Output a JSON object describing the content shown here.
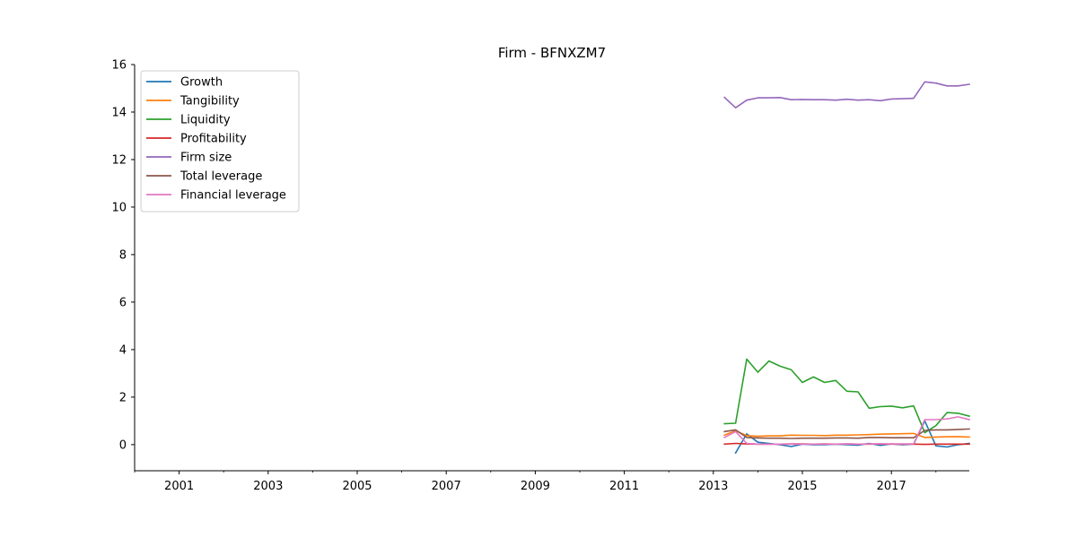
{
  "chart_data": {
    "type": "line",
    "title": "Firm - BFNXZM7",
    "xlabel": "",
    "ylabel": "",
    "xlim": [
      2000.0,
      2018.75
    ],
    "ylim": [
      -1.1,
      16
    ],
    "x_ticks": [
      2001,
      2003,
      2005,
      2007,
      2009,
      2011,
      2013,
      2015,
      2017
    ],
    "x_minor_ticks": [
      2000,
      2002,
      2004,
      2006,
      2008,
      2010,
      2012,
      2014,
      2016,
      2018
    ],
    "y_ticks": [
      0,
      2,
      4,
      6,
      8,
      10,
      12,
      14,
      16
    ],
    "legend_position": "top-left",
    "grid": false,
    "x": [
      2013.25,
      2013.5,
      2013.75,
      2014.0,
      2014.25,
      2014.5,
      2014.75,
      2015.0,
      2015.25,
      2015.5,
      2015.75,
      2016.0,
      2016.25,
      2016.5,
      2016.75,
      2017.0,
      2017.25,
      2017.5,
      2017.75,
      2018.0,
      2018.25,
      2018.5,
      2018.75
    ],
    "series": [
      {
        "name": "Growth",
        "color": "#1f77b4",
        "values": [
          null,
          -0.35,
          0.45,
          0.1,
          0.05,
          0.0,
          -0.08,
          0.02,
          0.0,
          0.0,
          0.02,
          0.0,
          -0.02,
          0.05,
          -0.03,
          0.03,
          0.0,
          0.02,
          1.0,
          -0.05,
          -0.1,
          0.0,
          0.05
        ]
      },
      {
        "name": "Tangibility",
        "color": "#ff7f0e",
        "values": [
          0.4,
          0.58,
          0.38,
          0.35,
          0.37,
          0.37,
          0.4,
          0.39,
          0.39,
          0.38,
          0.4,
          0.4,
          0.41,
          0.42,
          0.44,
          0.45,
          0.46,
          0.47,
          0.3,
          0.32,
          0.33,
          0.34,
          0.32
        ]
      },
      {
        "name": "Liquidity",
        "color": "#2ca02c",
        "values": [
          0.88,
          0.9,
          3.6,
          3.05,
          3.52,
          3.3,
          3.15,
          2.62,
          2.85,
          2.62,
          2.7,
          2.25,
          2.22,
          1.53,
          1.6,
          1.62,
          1.55,
          1.63,
          0.5,
          0.8,
          1.35,
          1.32,
          1.2
        ]
      },
      {
        "name": "Profitability",
        "color": "#d62728",
        "values": [
          0.02,
          0.05,
          0.03,
          0.02,
          0.02,
          0.02,
          0.03,
          0.03,
          0.02,
          0.03,
          0.02,
          0.03,
          0.02,
          0.02,
          0.03,
          0.02,
          0.02,
          0.02,
          0.01,
          0.02,
          0.02,
          0.02,
          0.02
        ]
      },
      {
        "name": "Firm size",
        "color": "#9467bd",
        "values": [
          14.62,
          14.18,
          14.5,
          14.6,
          14.6,
          14.61,
          14.52,
          14.53,
          14.52,
          14.52,
          14.5,
          14.54,
          14.5,
          14.52,
          14.48,
          14.55,
          14.56,
          14.58,
          15.27,
          15.22,
          15.1,
          15.1,
          15.17
        ]
      },
      {
        "name": "Total leverage",
        "color": "#8c564b",
        "values": [
          0.55,
          0.62,
          0.3,
          0.28,
          0.27,
          0.27,
          0.26,
          0.27,
          0.27,
          0.27,
          0.28,
          0.28,
          0.27,
          0.3,
          0.3,
          0.29,
          0.29,
          0.29,
          0.6,
          0.62,
          0.62,
          0.64,
          0.66
        ]
      },
      {
        "name": "Financial leverage",
        "color": "#e377c2",
        "values": [
          0.3,
          0.55,
          0.05,
          0.02,
          0.02,
          0.02,
          0.02,
          0.02,
          0.02,
          0.02,
          0.02,
          0.03,
          0.02,
          0.03,
          0.03,
          0.03,
          0.03,
          0.03,
          1.05,
          1.05,
          1.08,
          1.17,
          1.05
        ]
      }
    ]
  }
}
